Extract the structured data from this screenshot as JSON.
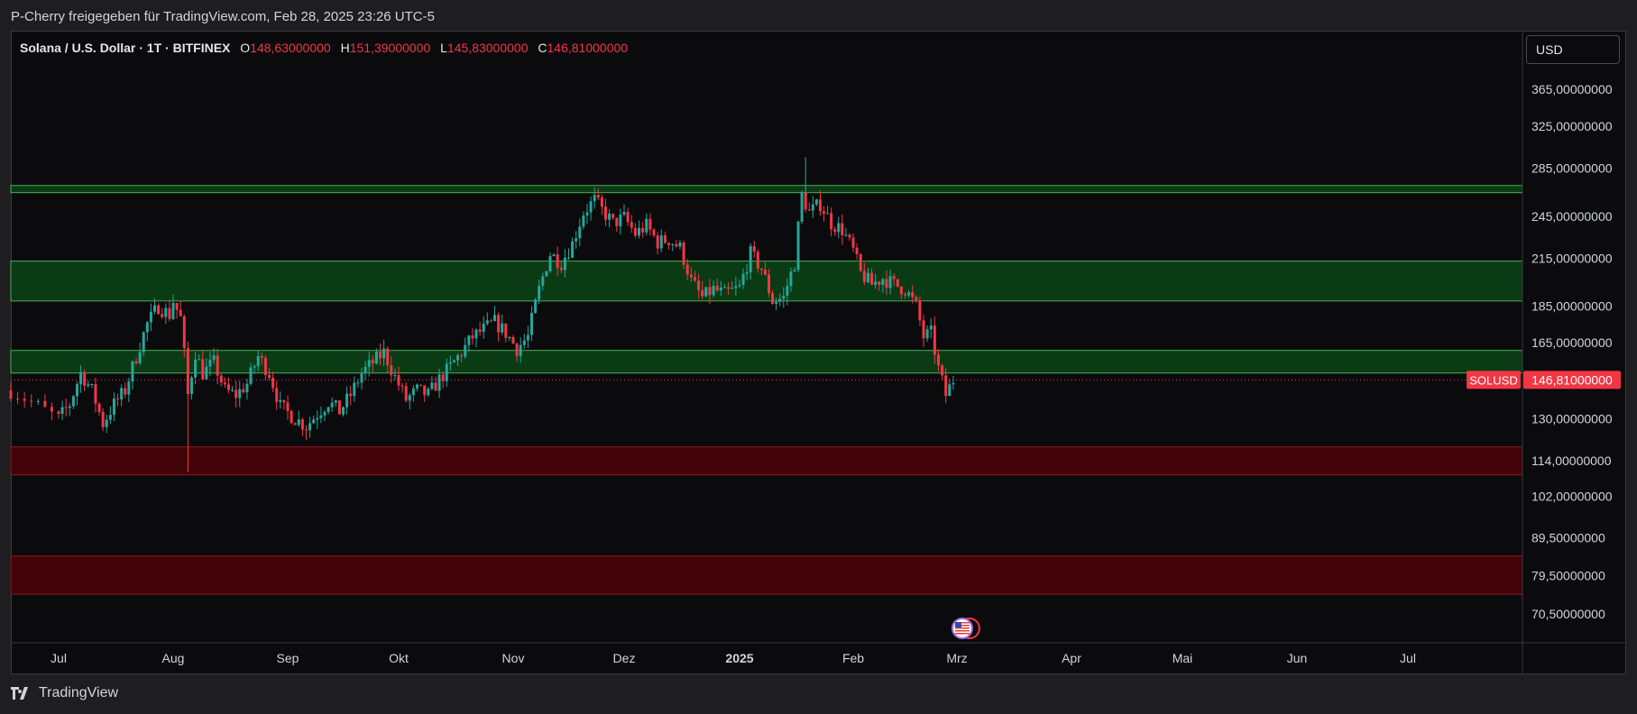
{
  "header": {
    "share_text": "P-Cherry freigegeben für TradingView.com, Feb 28, 2025 23:26 UTC-5"
  },
  "legend": {
    "symbol": "Solana / U.S. Dollar · 1T · BITFINEX",
    "open_label": "O",
    "open": "148,63000000",
    "high_label": "H",
    "high": "151,39000000",
    "low_label": "L",
    "low": "145,83000000",
    "close_label": "C",
    "close": "146,81000000"
  },
  "currency_button": "USD",
  "brand": {
    "name": "TradingView",
    "logo_icon": "tradingview-logo-icon"
  },
  "colors": {
    "up": "#26a69a",
    "down": "#f23645",
    "support_zone": "#0a3b14",
    "support_border": "#4caf50",
    "resistance_zone": "#420409",
    "resistance_border": "#8b1a22",
    "price_tag": "#f23645"
  },
  "chart_data": {
    "type": "candlestick",
    "symbol": "SOLUSD",
    "last_price": 146.81,
    "last_price_label": "146,81000000",
    "price_scale": "log",
    "y_ticks": [
      "365,00000000",
      "325,00000000",
      "285,00000000",
      "245,00000000",
      "215,00000000",
      "185,00000000",
      "165,00000000",
      "130,00000000",
      "114,00000000",
      "102,00000000",
      "89,50000000",
      "79,50000000",
      "70,50000000"
    ],
    "x_ticks": [
      "Jul",
      "Aug",
      "Sep",
      "Okt",
      "Nov",
      "Dez",
      "2025",
      "Feb",
      "Mrz",
      "Apr",
      "Mai",
      "Jun",
      "Jul"
    ],
    "x_range": [
      "2024-06-24",
      "2025-07-31"
    ],
    "zones": [
      {
        "type": "support",
        "low": 264,
        "high": 270
      },
      {
        "type": "support",
        "low": 188,
        "high": 213
      },
      {
        "type": "support",
        "low": 150,
        "high": 161
      },
      {
        "type": "resistance",
        "low": 109,
        "high": 119
      },
      {
        "type": "resistance",
        "low": 75,
        "high": 84.5
      }
    ],
    "events": [
      {
        "date": "2025-02-28",
        "icon": "us-flag-event-icon"
      }
    ],
    "price_path": [
      [
        "2024-06-24",
        142
      ],
      [
        "2024-06-27",
        137
      ],
      [
        "2024-07-01",
        130
      ],
      [
        "2024-07-04",
        136
      ],
      [
        "2024-07-07",
        150
      ],
      [
        "2024-07-10",
        142
      ],
      [
        "2024-07-13",
        128
      ],
      [
        "2024-07-16",
        136
      ],
      [
        "2024-07-19",
        142
      ],
      [
        "2024-07-22",
        158
      ],
      [
        "2024-07-25",
        175
      ],
      [
        "2024-07-28",
        185
      ],
      [
        "2024-07-31",
        180
      ],
      [
        "2024-08-01",
        188
      ],
      [
        "2024-08-03",
        178
      ],
      [
        "2024-08-05",
        140
      ],
      [
        "2024-08-07",
        160
      ],
      [
        "2024-08-09",
        150
      ],
      [
        "2024-08-12",
        155
      ],
      [
        "2024-08-15",
        142
      ],
      [
        "2024-08-18",
        140
      ],
      [
        "2024-08-21",
        145
      ],
      [
        "2024-08-24",
        158
      ],
      [
        "2024-08-27",
        150
      ],
      [
        "2024-08-30",
        135
      ],
      [
        "2024-09-03",
        130
      ],
      [
        "2024-09-06",
        127
      ],
      [
        "2024-09-09",
        132
      ],
      [
        "2024-09-12",
        137
      ],
      [
        "2024-09-15",
        133
      ],
      [
        "2024-09-18",
        140
      ],
      [
        "2024-09-21",
        150
      ],
      [
        "2024-09-24",
        155
      ],
      [
        "2024-09-27",
        160
      ],
      [
        "2024-09-30",
        148
      ],
      [
        "2024-10-03",
        138
      ],
      [
        "2024-10-06",
        142
      ],
      [
        "2024-10-09",
        140
      ],
      [
        "2024-10-12",
        147
      ],
      [
        "2024-10-15",
        153
      ],
      [
        "2024-10-18",
        160
      ],
      [
        "2024-10-21",
        168
      ],
      [
        "2024-10-24",
        172
      ],
      [
        "2024-10-27",
        176
      ],
      [
        "2024-10-30",
        170
      ],
      [
        "2024-11-02",
        162
      ],
      [
        "2024-11-05",
        168
      ],
      [
        "2024-11-08",
        195
      ],
      [
        "2024-11-11",
        218
      ],
      [
        "2024-11-14",
        212
      ],
      [
        "2024-11-17",
        225
      ],
      [
        "2024-11-20",
        248
      ],
      [
        "2024-11-23",
        258
      ],
      [
        "2024-11-25",
        250
      ],
      [
        "2024-11-28",
        240
      ],
      [
        "2024-12-01",
        244
      ],
      [
        "2024-12-04",
        232
      ],
      [
        "2024-12-07",
        238
      ],
      [
        "2024-12-10",
        226
      ],
      [
        "2024-12-13",
        228
      ],
      [
        "2024-12-16",
        222
      ],
      [
        "2024-12-19",
        200
      ],
      [
        "2024-12-22",
        190
      ],
      [
        "2024-12-25",
        195
      ],
      [
        "2024-12-28",
        192
      ],
      [
        "2025-01-01",
        196
      ],
      [
        "2025-01-04",
        218
      ],
      [
        "2025-01-07",
        208
      ],
      [
        "2025-01-10",
        188
      ],
      [
        "2025-01-13",
        190
      ],
      [
        "2025-01-16",
        212
      ],
      [
        "2025-01-18",
        262
      ],
      [
        "2025-01-20",
        248
      ],
      [
        "2025-01-23",
        255
      ],
      [
        "2025-01-26",
        240
      ],
      [
        "2025-01-29",
        235
      ],
      [
        "2025-02-01",
        220
      ],
      [
        "2025-02-03",
        205
      ],
      [
        "2025-02-06",
        198
      ],
      [
        "2025-02-09",
        202
      ],
      [
        "2025-02-12",
        198
      ],
      [
        "2025-02-15",
        195
      ],
      [
        "2025-02-18",
        185
      ],
      [
        "2025-02-20",
        168
      ],
      [
        "2025-02-22",
        170
      ],
      [
        "2025-02-24",
        152
      ],
      [
        "2025-02-26",
        140
      ],
      [
        "2025-02-28",
        146.81
      ]
    ]
  }
}
